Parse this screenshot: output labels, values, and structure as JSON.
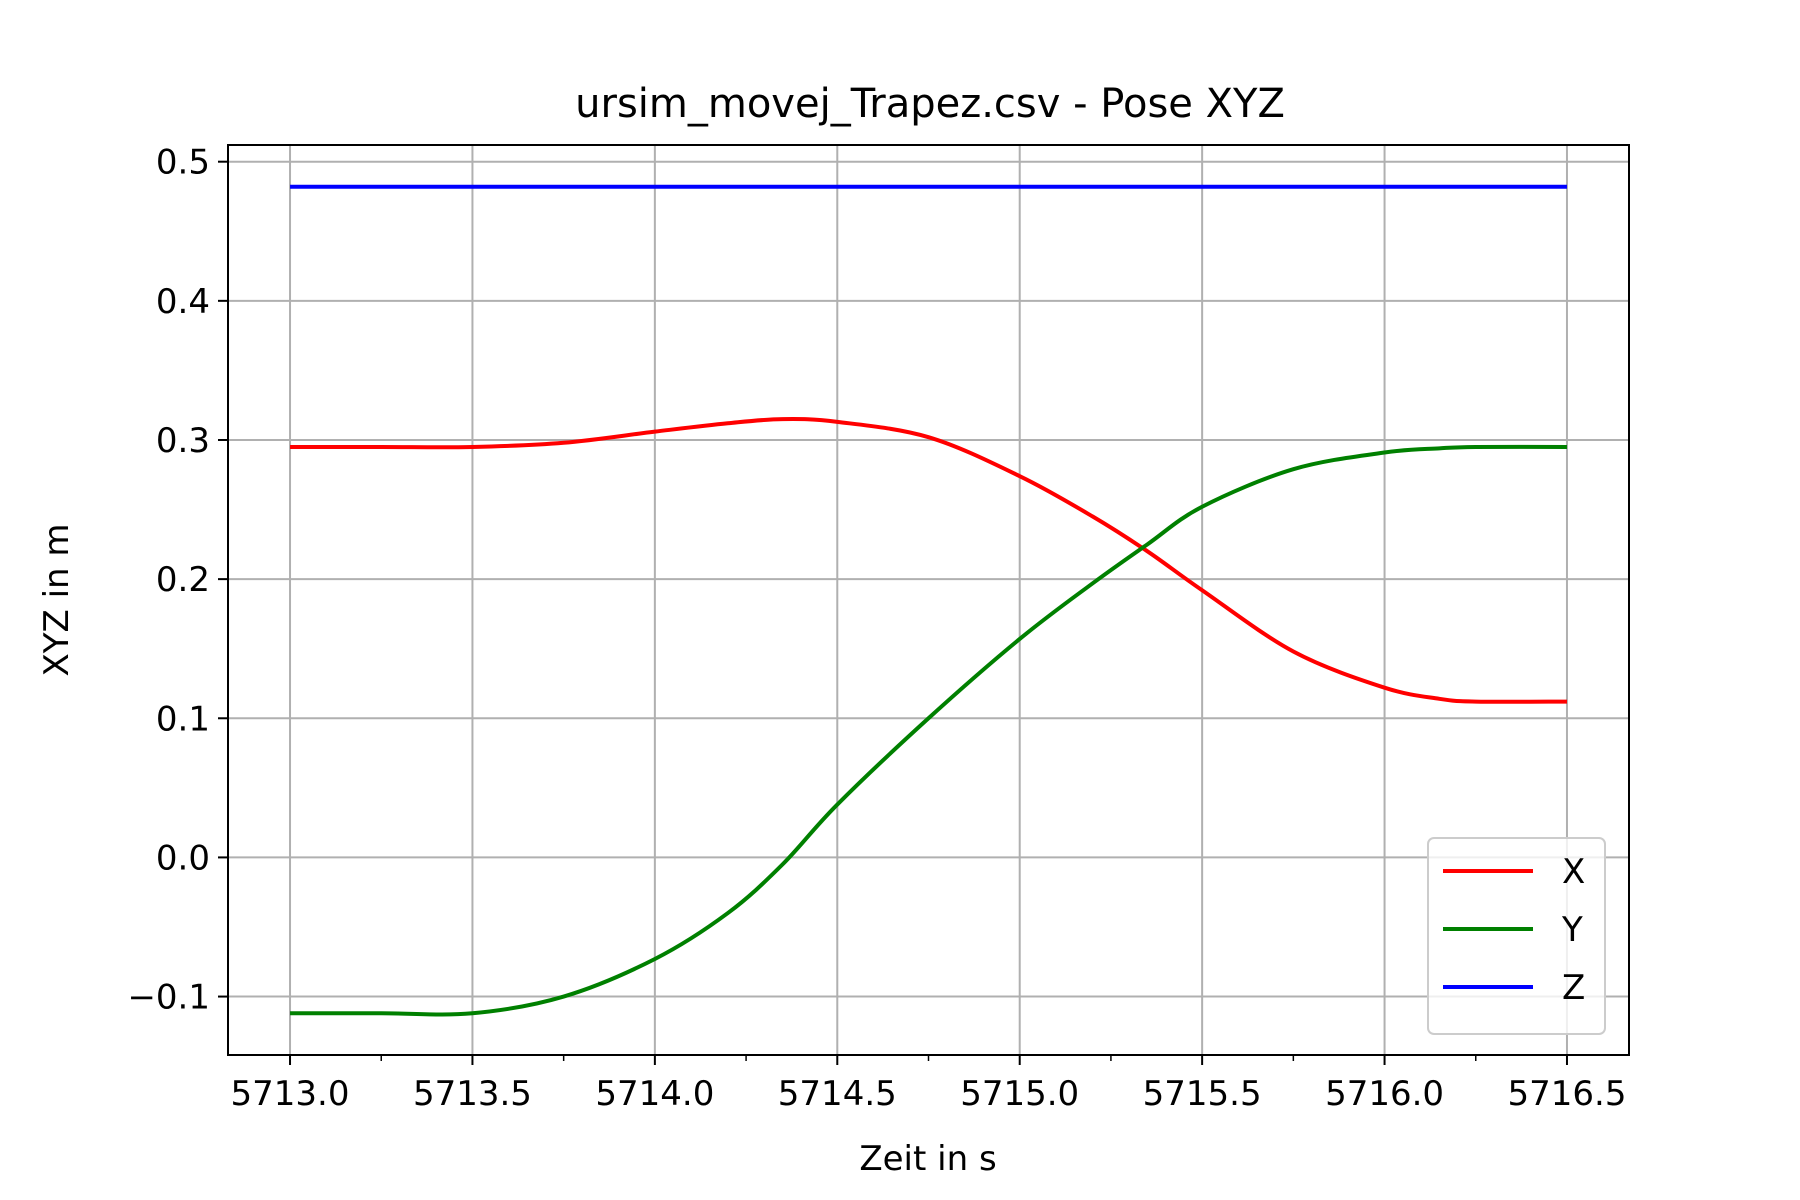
{
  "chart_data": {
    "type": "line",
    "title": "ursim_movej_Trapez.csv - Pose XYZ",
    "xlabel": "Zeit in s",
    "ylabel": "XYZ in m",
    "xlim": [
      5712.83,
      5716.67
    ],
    "ylim": [
      -0.142,
      0.512
    ],
    "xticks": [
      5713.0,
      5713.5,
      5714.0,
      5714.5,
      5715.0,
      5715.5,
      5716.0,
      5716.5
    ],
    "xtick_labels": [
      "5713.0",
      "5713.5",
      "5714.0",
      "5714.5",
      "5715.0",
      "5715.5",
      "5716.0",
      "5716.5"
    ],
    "yticks": [
      -0.1,
      0.0,
      0.1,
      0.2,
      0.3,
      0.4,
      0.5
    ],
    "ytick_labels": [
      "−0.1",
      "0.0",
      "0.1",
      "0.2",
      "0.3",
      "0.4",
      "0.5"
    ],
    "grid": true,
    "legend": "lower-right",
    "series": [
      {
        "name": "X",
        "color": "#ff0000",
        "points": [
          [
            5713.0,
            0.295
          ],
          [
            5713.25,
            0.295
          ],
          [
            5713.5,
            0.295
          ],
          [
            5713.75,
            0.298
          ],
          [
            5714.0,
            0.306
          ],
          [
            5714.2,
            0.312
          ],
          [
            5714.35,
            0.315
          ],
          [
            5714.5,
            0.313
          ],
          [
            5714.75,
            0.302
          ],
          [
            5715.0,
            0.274
          ],
          [
            5715.2,
            0.245
          ],
          [
            5715.35,
            0.22
          ],
          [
            5715.5,
            0.192
          ],
          [
            5715.75,
            0.148
          ],
          [
            5716.0,
            0.122
          ],
          [
            5716.15,
            0.114
          ],
          [
            5716.25,
            0.112
          ],
          [
            5716.5,
            0.112
          ]
        ]
      },
      {
        "name": "Y",
        "color": "#008000",
        "points": [
          [
            5713.0,
            -0.112
          ],
          [
            5713.25,
            -0.112
          ],
          [
            5713.5,
            -0.112
          ],
          [
            5713.75,
            -0.1
          ],
          [
            5714.0,
            -0.073
          ],
          [
            5714.2,
            -0.04
          ],
          [
            5714.35,
            -0.005
          ],
          [
            5714.5,
            0.038
          ],
          [
            5714.75,
            0.1
          ],
          [
            5715.0,
            0.157
          ],
          [
            5715.2,
            0.197
          ],
          [
            5715.35,
            0.225
          ],
          [
            5715.5,
            0.252
          ],
          [
            5715.75,
            0.279
          ],
          [
            5716.0,
            0.291
          ],
          [
            5716.15,
            0.294
          ],
          [
            5716.25,
            0.295
          ],
          [
            5716.5,
            0.295
          ]
        ]
      },
      {
        "name": "Z",
        "color": "#0000ff",
        "points": [
          [
            5713.0,
            0.482
          ],
          [
            5714.0,
            0.482
          ],
          [
            5715.0,
            0.482
          ],
          [
            5716.0,
            0.482
          ],
          [
            5716.5,
            0.482
          ]
        ]
      }
    ]
  }
}
